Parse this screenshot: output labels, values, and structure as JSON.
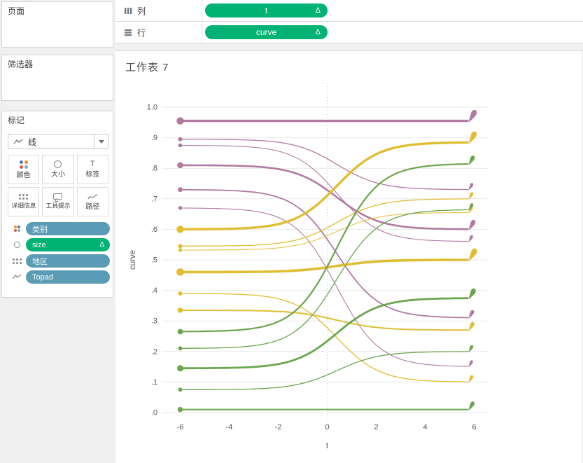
{
  "sidebar": {
    "pages_label": "页面",
    "filters_label": "筛选器",
    "marks": {
      "label": "标记",
      "mark_type": "线",
      "label_icon_glyph": "T",
      "buttons": [
        {
          "label": "颜色"
        },
        {
          "label": "大小"
        },
        {
          "label": "标签"
        },
        {
          "label": "详细信息"
        },
        {
          "label": "工具提示"
        },
        {
          "label": "路径"
        }
      ],
      "pills": [
        {
          "label": "类别",
          "kind": "dimension"
        },
        {
          "label": "size",
          "kind": "measure",
          "delta": "Δ"
        },
        {
          "label": "地区",
          "kind": "dimension"
        },
        {
          "label": "Topad",
          "kind": "dimension"
        }
      ]
    }
  },
  "shelves": {
    "columns_label": "列",
    "columns_pill": {
      "label": "t",
      "delta": "Δ"
    },
    "rows_label": "行",
    "rows_pill": {
      "label": "curve",
      "delta": "Δ"
    }
  },
  "sheet_title": "工作表 7",
  "colors": {
    "measure_pill": "#00b374",
    "dimension_pill": "#5a9cb5"
  },
  "chart_data": {
    "type": "line",
    "title": "工作表 7",
    "xlabel": "t",
    "ylabel": "curve",
    "x_ticks": [
      -6,
      -4,
      -2,
      0,
      2,
      4,
      6
    ],
    "y_tick_labels": [
      ".0",
      ".1",
      ".2",
      ".3",
      ".4",
      ".5",
      ".6",
      ".7",
      ".8",
      ".9",
      "1.0"
    ],
    "xlim": [
      -6.6,
      6.9
    ],
    "ylim": [
      0,
      1.08
    ],
    "grid": "light horizontal line at each 0.1; dotted vertical reference line at t=0",
    "model": "y(t) = y_start + (y_end - y_start) / (1 + exp(-1.15*(t-0.4))); dot at left end, comma-teardrop at right end, stroke width encodes size",
    "palette": {
      "purple": "#b279a2",
      "gold": "#e0be33",
      "green": "#6aa64e"
    },
    "series": [
      {
        "color": "purple",
        "y_start": 0.955,
        "y_end": 0.955,
        "width": 3.4
      },
      {
        "color": "purple",
        "y_start": 0.895,
        "y_end": 0.73,
        "width": 1.3
      },
      {
        "color": "purple",
        "y_start": 0.875,
        "y_end": 0.56,
        "width": 1.1
      },
      {
        "color": "purple",
        "y_start": 0.81,
        "y_end": 0.6,
        "width": 2.6
      },
      {
        "color": "purple",
        "y_start": 0.73,
        "y_end": 0.31,
        "width": 1.8
      },
      {
        "color": "purple",
        "y_start": 0.67,
        "y_end": 0.15,
        "width": 1.1
      },
      {
        "color": "gold",
        "y_start": 0.6,
        "y_end": 0.885,
        "width": 3.4
      },
      {
        "color": "gold",
        "y_start": 0.545,
        "y_end": 0.7,
        "width": 1.3
      },
      {
        "color": "gold",
        "y_start": 0.532,
        "y_end": 0.655,
        "width": 1.0
      },
      {
        "color": "gold",
        "y_start": 0.46,
        "y_end": 0.5,
        "width": 3.6
      },
      {
        "color": "gold",
        "y_start": 0.39,
        "y_end": 0.1,
        "width": 1.3
      },
      {
        "color": "gold",
        "y_start": 0.335,
        "y_end": 0.27,
        "width": 2.0
      },
      {
        "color": "green",
        "y_start": 0.265,
        "y_end": 0.815,
        "width": 2.2
      },
      {
        "color": "green",
        "y_start": 0.21,
        "y_end": 0.665,
        "width": 1.3
      },
      {
        "color": "green",
        "y_start": 0.145,
        "y_end": 0.375,
        "width": 2.8
      },
      {
        "color": "green",
        "y_start": 0.075,
        "y_end": 0.2,
        "width": 1.3
      },
      {
        "color": "green",
        "y_start": 0.01,
        "y_end": 0.01,
        "width": 2.0
      }
    ]
  }
}
